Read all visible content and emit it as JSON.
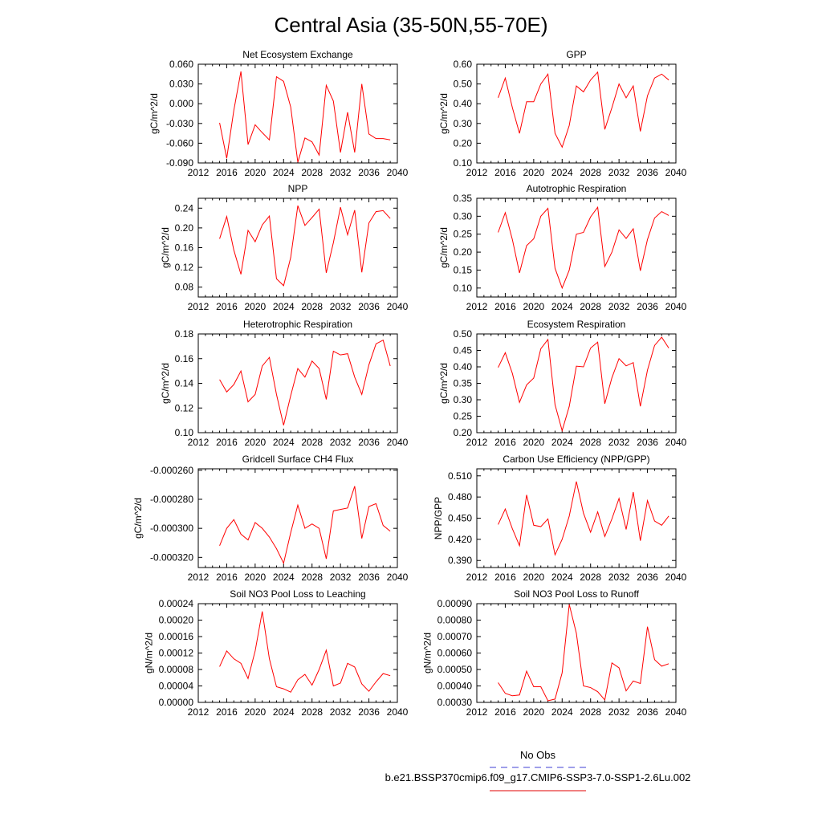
{
  "figure_title": "Central Asia (35-50N,55-70E)",
  "legend": [
    {
      "label": "No Obs",
      "color": "#3f3fd4",
      "style": "dashed"
    },
    {
      "label": "b.e21.BSSP370cmip6.f09_g17.CMIP6-SSP3-7.0-SSP1-2.6Lu.002",
      "color": "#e00000",
      "style": "solid"
    }
  ],
  "colors": {
    "series": "#ff0000",
    "axes": "#000000"
  },
  "chart_data": [
    {
      "type": "line",
      "title": "Net Ecosystem Exchange",
      "ylabel": "gC/m^2/d",
      "xlim": [
        2012,
        2040
      ],
      "ylim": [
        -0.09,
        0.06
      ],
      "xticks": [
        "2012",
        "2016",
        "2020",
        "2024",
        "2028",
        "2032",
        "2036",
        "2040"
      ],
      "yticks": [
        "-0.090",
        "-0.060",
        "-0.030",
        "0.000",
        "0.030",
        "0.060"
      ],
      "series": [
        {
          "x": [
            2015,
            2016,
            2017,
            2018,
            2019,
            2020,
            2021,
            2022,
            2023,
            2024,
            2025,
            2026,
            2027,
            2028,
            2029,
            2030,
            2031,
            2032,
            2033,
            2034,
            2035,
            2036,
            2037,
            2038,
            2039
          ],
          "values": [
            -0.029,
            -0.083,
            -0.01,
            0.049,
            -0.062,
            -0.032,
            -0.044,
            -0.055,
            0.041,
            0.034,
            -0.005,
            -0.089,
            -0.052,
            -0.058,
            -0.078,
            0.028,
            0.004,
            -0.074,
            -0.013,
            -0.074,
            0.03,
            -0.046,
            -0.053,
            -0.053,
            -0.055
          ]
        }
      ]
    },
    {
      "type": "line",
      "title": "GPP",
      "ylabel": "gC/m^2/d",
      "xlim": [
        2012,
        2040
      ],
      "ylim": [
        0.1,
        0.6
      ],
      "xticks": [
        "2012",
        "2016",
        "2020",
        "2024",
        "2028",
        "2032",
        "2036",
        "2040"
      ],
      "yticks": [
        "0.10",
        "0.20",
        "0.30",
        "0.40",
        "0.50",
        "0.60"
      ],
      "series": [
        {
          "x": [
            2015,
            2016,
            2017,
            2018,
            2019,
            2020,
            2021,
            2022,
            2023,
            2024,
            2025,
            2026,
            2027,
            2028,
            2029,
            2030,
            2031,
            2032,
            2033,
            2034,
            2035,
            2036,
            2037,
            2038,
            2039
          ],
          "values": [
            0.43,
            0.53,
            0.38,
            0.25,
            0.41,
            0.41,
            0.5,
            0.55,
            0.25,
            0.18,
            0.29,
            0.49,
            0.46,
            0.52,
            0.56,
            0.27,
            0.38,
            0.5,
            0.43,
            0.49,
            0.26,
            0.44,
            0.53,
            0.55,
            0.52
          ]
        }
      ]
    },
    {
      "type": "line",
      "title": "NPP",
      "ylabel": "gC/m^2/d",
      "xlim": [
        2012,
        2040
      ],
      "ylim": [
        0.06,
        0.26
      ],
      "xticks": [
        "2012",
        "2016",
        "2020",
        "2024",
        "2028",
        "2032",
        "2036",
        "2040"
      ],
      "yticks": [
        "0.08",
        "0.12",
        "0.16",
        "0.20",
        "0.24"
      ],
      "series": [
        {
          "x": [
            2015,
            2016,
            2017,
            2018,
            2019,
            2020,
            2021,
            2022,
            2023,
            2024,
            2025,
            2026,
            2027,
            2028,
            2029,
            2030,
            2031,
            2032,
            2033,
            2034,
            2035,
            2036,
            2037,
            2038,
            2039
          ],
          "values": [
            0.178,
            0.223,
            0.155,
            0.106,
            0.195,
            0.172,
            0.206,
            0.224,
            0.097,
            0.083,
            0.14,
            0.245,
            0.205,
            0.221,
            0.238,
            0.109,
            0.17,
            0.242,
            0.186,
            0.236,
            0.11,
            0.21,
            0.233,
            0.235,
            0.219
          ]
        }
      ]
    },
    {
      "type": "line",
      "title": "Autotrophic Respiration",
      "ylabel": "gC/m^2/d",
      "xlim": [
        2012,
        2040
      ],
      "ylim": [
        0.075,
        0.35
      ],
      "xticks": [
        "2012",
        "2016",
        "2020",
        "2024",
        "2028",
        "2032",
        "2036",
        "2040"
      ],
      "yticks": [
        "0.10",
        "0.15",
        "0.20",
        "0.25",
        "0.30",
        "0.35"
      ],
      "series": [
        {
          "x": [
            2015,
            2016,
            2017,
            2018,
            2019,
            2020,
            2021,
            2022,
            2023,
            2024,
            2025,
            2026,
            2027,
            2028,
            2029,
            2030,
            2031,
            2032,
            2033,
            2034,
            2035,
            2036,
            2037,
            2038,
            2039
          ],
          "values": [
            0.255,
            0.31,
            0.235,
            0.142,
            0.218,
            0.237,
            0.3,
            0.322,
            0.155,
            0.1,
            0.15,
            0.25,
            0.255,
            0.298,
            0.325,
            0.16,
            0.2,
            0.262,
            0.238,
            0.265,
            0.148,
            0.235,
            0.295,
            0.313,
            0.302
          ]
        }
      ]
    },
    {
      "type": "line",
      "title": "Heterotrophic Respiration",
      "ylabel": "gC/m^2/d",
      "xlim": [
        2012,
        2040
      ],
      "ylim": [
        0.1,
        0.18
      ],
      "xticks": [
        "2012",
        "2016",
        "2020",
        "2024",
        "2028",
        "2032",
        "2036",
        "2040"
      ],
      "yticks": [
        "0.10",
        "0.12",
        "0.14",
        "0.16",
        "0.18"
      ],
      "series": [
        {
          "x": [
            2015,
            2016,
            2017,
            2018,
            2019,
            2020,
            2021,
            2022,
            2023,
            2024,
            2025,
            2026,
            2027,
            2028,
            2029,
            2030,
            2031,
            2032,
            2033,
            2034,
            2035,
            2036,
            2037,
            2038,
            2039
          ],
          "values": [
            0.143,
            0.133,
            0.139,
            0.15,
            0.125,
            0.131,
            0.154,
            0.161,
            0.131,
            0.106,
            0.13,
            0.152,
            0.145,
            0.158,
            0.152,
            0.127,
            0.166,
            0.163,
            0.164,
            0.145,
            0.131,
            0.155,
            0.172,
            0.175,
            0.154
          ]
        }
      ]
    },
    {
      "type": "line",
      "title": "Ecosystem Respiration",
      "ylabel": "gC/m^2/d",
      "xlim": [
        2012,
        2040
      ],
      "ylim": [
        0.2,
        0.5
      ],
      "xticks": [
        "2012",
        "2016",
        "2020",
        "2024",
        "2028",
        "2032",
        "2036",
        "2040"
      ],
      "yticks": [
        "0.20",
        "0.25",
        "0.30",
        "0.35",
        "0.40",
        "0.45",
        "0.50"
      ],
      "series": [
        {
          "x": [
            2015,
            2016,
            2017,
            2018,
            2019,
            2020,
            2021,
            2022,
            2023,
            2024,
            2025,
            2026,
            2027,
            2028,
            2029,
            2030,
            2031,
            2032,
            2033,
            2034,
            2035,
            2036,
            2037,
            2038,
            2039
          ],
          "values": [
            0.398,
            0.443,
            0.38,
            0.292,
            0.345,
            0.366,
            0.455,
            0.483,
            0.285,
            0.206,
            0.28,
            0.402,
            0.4,
            0.457,
            0.475,
            0.288,
            0.367,
            0.425,
            0.403,
            0.413,
            0.28,
            0.39,
            0.465,
            0.49,
            0.457
          ]
        }
      ]
    },
    {
      "type": "line",
      "title": "Gridcell Surface CH4 Flux",
      "ylabel": "gC/m^2/d",
      "xlim": [
        2012,
        2040
      ],
      "ylim": [
        -0.000327,
        -0.000259
      ],
      "xticks": [
        "2012",
        "2016",
        "2020",
        "2024",
        "2028",
        "2032",
        "2036",
        "2040"
      ],
      "yticks": [
        "-0.000320",
        "-0.000300",
        "-0.000280",
        "-0.000260"
      ],
      "series": [
        {
          "x": [
            2015,
            2016,
            2017,
            2018,
            2019,
            2020,
            2021,
            2022,
            2023,
            2024,
            2025,
            2026,
            2027,
            2028,
            2029,
            2030,
            2031,
            2032,
            2033,
            2034,
            2035,
            2036,
            2037,
            2038,
            2039
          ],
          "values": [
            -0.000312,
            -0.0003,
            -0.000294,
            -0.000304,
            -0.000308,
            -0.000296,
            -0.0003,
            -0.000306,
            -0.000314,
            -0.000324,
            -0.000303,
            -0.000284,
            -0.0003,
            -0.000297,
            -0.0003,
            -0.000321,
            -0.000288,
            -0.000287,
            -0.000286,
            -0.000271,
            -0.000307,
            -0.000285,
            -0.000283,
            -0.000298,
            -0.000302
          ]
        }
      ]
    },
    {
      "type": "line",
      "title": "Carbon Use Efficiency (NPP/GPP)",
      "ylabel": "NPP/GPP",
      "xlim": [
        2012,
        2040
      ],
      "ylim": [
        0.38,
        0.52
      ],
      "xticks": [
        "2012",
        "2016",
        "2020",
        "2024",
        "2028",
        "2032",
        "2036",
        "2040"
      ],
      "yticks": [
        "0.390",
        "0.420",
        "0.450",
        "0.480",
        "0.510"
      ],
      "series": [
        {
          "x": [
            2015,
            2016,
            2017,
            2018,
            2019,
            2020,
            2021,
            2022,
            2023,
            2024,
            2025,
            2026,
            2027,
            2028,
            2029,
            2030,
            2031,
            2032,
            2033,
            2034,
            2035,
            2036,
            2037,
            2038,
            2039
          ],
          "values": [
            0.441,
            0.463,
            0.435,
            0.411,
            0.483,
            0.44,
            0.438,
            0.449,
            0.398,
            0.42,
            0.453,
            0.502,
            0.457,
            0.43,
            0.459,
            0.424,
            0.449,
            0.478,
            0.434,
            0.487,
            0.418,
            0.475,
            0.446,
            0.44,
            0.453
          ]
        }
      ]
    },
    {
      "type": "line",
      "title": "Soil NO3 Pool Loss to Leaching",
      "ylabel": "gN/m^2/d",
      "xlim": [
        2012,
        2040
      ],
      "ylim": [
        0.0,
        0.00024
      ],
      "xticks": [
        "2012",
        "2016",
        "2020",
        "2024",
        "2028",
        "2032",
        "2036",
        "2040"
      ],
      "yticks": [
        "0.00000",
        "0.00004",
        "0.00008",
        "0.00012",
        "0.00016",
        "0.00020",
        "0.00024"
      ],
      "series": [
        {
          "x": [
            2015,
            2016,
            2017,
            2018,
            2019,
            2020,
            2021,
            2022,
            2023,
            2024,
            2025,
            2026,
            2027,
            2028,
            2029,
            2030,
            2031,
            2032,
            2033,
            2034,
            2035,
            2036,
            2037,
            2038,
            2039
          ],
          "values": [
            8.7e-05,
            0.000125,
            0.000106,
            9.5e-05,
            5.8e-05,
            0.000125,
            0.000221,
            0.000106,
            3.8e-05,
            3.3e-05,
            2.5e-05,
            5.5e-05,
            6.8e-05,
            4.2e-05,
            8e-05,
            0.000127,
            4e-05,
            4.7e-05,
            9.5e-05,
            8.6e-05,
            4.5e-05,
            2.7e-05,
            5e-05,
            7e-05,
            6.5e-05
          ]
        }
      ]
    },
    {
      "type": "line",
      "title": "Soil NO3 Pool Loss to Runoff",
      "ylabel": "gN/m^2/d",
      "xlim": [
        2012,
        2040
      ],
      "ylim": [
        0.0003,
        0.0009
      ],
      "xticks": [
        "2012",
        "2016",
        "2020",
        "2024",
        "2028",
        "2032",
        "2036",
        "2040"
      ],
      "yticks": [
        "0.00030",
        "0.00040",
        "0.00050",
        "0.00060",
        "0.00070",
        "0.00080",
        "0.00090"
      ],
      "series": [
        {
          "x": [
            2015,
            2016,
            2017,
            2018,
            2019,
            2020,
            2021,
            2022,
            2023,
            2024,
            2025,
            2026,
            2027,
            2028,
            2029,
            2030,
            2031,
            2032,
            2033,
            2034,
            2035,
            2036,
            2037,
            2038,
            2039
          ],
          "values": [
            0.00042,
            0.000355,
            0.00034,
            0.000345,
            0.00049,
            0.000395,
            0.000395,
            0.00031,
            0.00032,
            0.00048,
            0.000895,
            0.00072,
            0.0004,
            0.00039,
            0.000365,
            0.000315,
            0.00054,
            0.00051,
            0.00037,
            0.00043,
            0.000415,
            0.00076,
            0.00056,
            0.00052,
            0.000535
          ]
        }
      ]
    }
  ]
}
